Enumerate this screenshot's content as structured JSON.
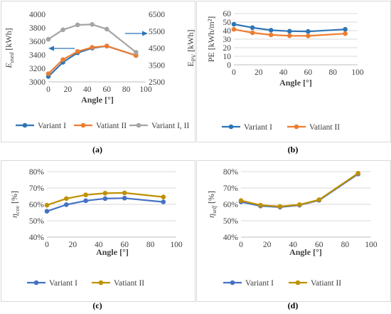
{
  "figure": {
    "panels": [
      {
        "id": "a",
        "caption": "(a)",
        "chart_data": {
          "type": "line",
          "xlabel": "Angle [°]",
          "xlim": [
            0,
            100
          ],
          "xticks": [
            0,
            20,
            40,
            60,
            80,
            100
          ],
          "ylabel": "E_used [kWh]",
          "ylabel_main": "E",
          "ylabel_sub": "used",
          "ylabel_unit": " [kWh]",
          "ylim": [
            3000,
            4000
          ],
          "yticks": [
            "3000",
            "3200",
            "3400",
            "3600",
            "3800",
            "4000"
          ],
          "y2label": "E_PV [kWh]",
          "y2label_main": "E",
          "y2label_sub": "PV",
          "y2label_unit": " [kWh]",
          "y2lim": [
            2500,
            6500
          ],
          "y2ticks": [
            "2500",
            "3500",
            "4500",
            "5500",
            "6500"
          ],
          "grid": false,
          "legend": "bottom",
          "series": [
            {
              "name": "Variant I",
              "color": "#2e75b6",
              "axis": "left",
              "x": [
                0,
                15,
                30,
                45,
                60,
                90
              ],
              "y": [
                3080,
                3290,
                3430,
                3500,
                3530,
                3390
              ]
            },
            {
              "name": "Vatiant II",
              "color": "#ed7d31",
              "axis": "left",
              "x": [
                0,
                15,
                30,
                45,
                60,
                90
              ],
              "y": [
                3120,
                3330,
                3450,
                3510,
                3530,
                3390
              ]
            },
            {
              "name": "Variant I, II",
              "color": "#a5a5a5",
              "axis": "right",
              "x": [
                0,
                15,
                30,
                45,
                60,
                90
              ],
              "y": [
                5020,
                5580,
                5870,
                5900,
                5620,
                4250
              ]
            }
          ]
        }
      },
      {
        "id": "b",
        "caption": "(b)",
        "chart_data": {
          "type": "line",
          "xlabel": "Angle [°]",
          "xlim": [
            0,
            100
          ],
          "xticks": [
            0,
            20,
            40,
            60,
            80,
            100
          ],
          "ylabel": "PE [kWh/m²]",
          "ylim": [
            0,
            60
          ],
          "yticks": [
            "0",
            "10",
            "20",
            "30",
            "40",
            "50",
            "60"
          ],
          "grid": true,
          "legend": "bottom",
          "series": [
            {
              "name": "Variant I",
              "color": "#2e75b6",
              "axis": "left",
              "x": [
                0,
                15,
                30,
                45,
                60,
                90
              ],
              "y": [
                47.5,
                43.5,
                40.5,
                39.3,
                39.0,
                41.5
              ]
            },
            {
              "name": "Vatiant II",
              "color": "#ed7d31",
              "axis": "left",
              "x": [
                0,
                15,
                30,
                45,
                60,
                90
              ],
              "y": [
                41.5,
                37.5,
                35.0,
                34.0,
                33.8,
                36.5
              ]
            }
          ]
        }
      },
      {
        "id": "c",
        "caption": "(c)",
        "chart_data": {
          "type": "line",
          "xlabel": "Angle [°]",
          "xlim": [
            0,
            100
          ],
          "xticks": [
            0,
            20,
            40,
            60,
            80,
            100
          ],
          "ylabel": "η_cov [%]",
          "ylabel_main": "η",
          "ylabel_sub": "cov",
          "ylabel_unit": " [%]",
          "ylim": [
            40,
            80
          ],
          "yticks": [
            "40%",
            "50%",
            "60%",
            "70%",
            "80%"
          ],
          "grid": true,
          "legend": "bottom",
          "series": [
            {
              "name": "Variant I",
              "color": "#4472c4",
              "axis": "left",
              "x": [
                0,
                15,
                30,
                45,
                60,
                90
              ],
              "y": [
                55.8,
                59.8,
                62.2,
                63.5,
                63.8,
                61.5
              ]
            },
            {
              "name": "Vatiant II",
              "color": "#bf9000",
              "axis": "left",
              "x": [
                0,
                15,
                30,
                45,
                60,
                90
              ],
              "y": [
                59.5,
                63.5,
                65.8,
                66.8,
                67.0,
                64.5
              ]
            }
          ]
        }
      },
      {
        "id": "d",
        "caption": "(d)",
        "chart_data": {
          "type": "line",
          "xlabel": "Angle [°]",
          "xlim": [
            0,
            100
          ],
          "xticks": [
            0,
            20,
            40,
            60,
            80,
            100
          ],
          "ylabel": "η_self [%]",
          "ylabel_main": "η",
          "ylabel_sub": "self",
          "ylabel_unit": " [%]",
          "ylim": [
            40,
            80
          ],
          "yticks": [
            "40%",
            "50%",
            "60%",
            "70%",
            "80%"
          ],
          "grid": true,
          "legend": "bottom",
          "series": [
            {
              "name": "Variant I",
              "color": "#4472c4",
              "axis": "left",
              "x": [
                0,
                15,
                30,
                45,
                60,
                90
              ],
              "y": [
                61.5,
                59.0,
                58.3,
                59.5,
                62.5,
                78.5
              ]
            },
            {
              "name": "Vatiant II",
              "color": "#bf9000",
              "axis": "left",
              "x": [
                0,
                15,
                30,
                45,
                60,
                90
              ],
              "y": [
                62.3,
                59.5,
                58.7,
                59.8,
                62.8,
                79.0
              ]
            }
          ]
        }
      }
    ]
  }
}
